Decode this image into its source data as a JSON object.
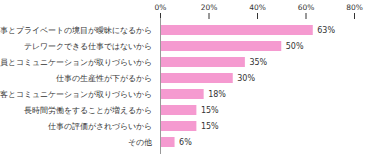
{
  "chart_data": {
    "type": "bar",
    "orientation": "horizontal",
    "categories": [
      "仕事とプライベートの境目が曖昧になるから",
      "テレワークできる仕事ではないから",
      "社員とコミュニケーションが取りづらいから",
      "仕事の生産性が下がるから",
      "顧客とコミュニケーションが取りづらいから",
      "長時間労働をすることが増えるから",
      "仕事の評価がされづらいから",
      "その他"
    ],
    "values": [
      63,
      50,
      35,
      30,
      18,
      15,
      15,
      6
    ],
    "value_labels": [
      "63%",
      "50%",
      "35%",
      "30%",
      "18%",
      "15%",
      "15%",
      "6%"
    ],
    "data_labels": true,
    "color": "#f59ad0",
    "xlim": [
      0,
      80
    ],
    "xticks": [
      {
        "value": 0,
        "label": "0%"
      },
      {
        "value": 20,
        "label": "20%"
      },
      {
        "value": 40,
        "label": "40%"
      },
      {
        "value": 60,
        "label": "60%"
      },
      {
        "value": 80,
        "label": "80%"
      }
    ],
    "grid": false
  }
}
